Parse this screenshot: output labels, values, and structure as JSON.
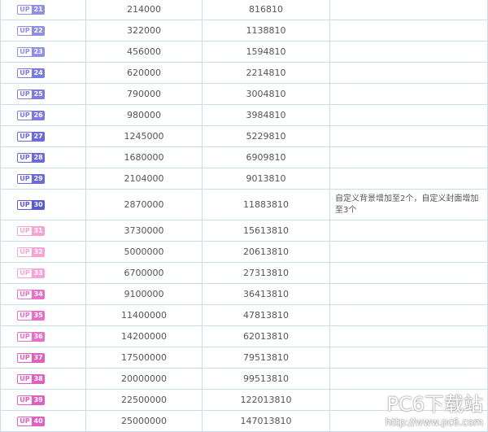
{
  "table": {
    "rows": [
      {
        "tag": "UP",
        "level": 21,
        "exp": 214000,
        "total": 816810,
        "color": "#8f8fe6"
      },
      {
        "tag": "UP",
        "level": 22,
        "exp": 322000,
        "total": 1138810,
        "color": "#8f8fe6"
      },
      {
        "tag": "UP",
        "level": 23,
        "exp": 456000,
        "total": 1594810,
        "color": "#8f8fe6"
      },
      {
        "tag": "UP",
        "level": 24,
        "exp": 620000,
        "total": 2214810,
        "color": "#7c7ce0"
      },
      {
        "tag": "UP",
        "level": 25,
        "exp": 790000,
        "total": 3004810,
        "color": "#7c7ce0"
      },
      {
        "tag": "UP",
        "level": 26,
        "exp": 980000,
        "total": 3984810,
        "color": "#7c7ce0"
      },
      {
        "tag": "UP",
        "level": 27,
        "exp": 1245000,
        "total": 5229810,
        "color": "#6a6ad8"
      },
      {
        "tag": "UP",
        "level": 28,
        "exp": 1680000,
        "total": 6909810,
        "color": "#6a6ad8"
      },
      {
        "tag": "UP",
        "level": 29,
        "exp": 2104000,
        "total": 9013810,
        "color": "#6a6ad8"
      },
      {
        "tag": "UP",
        "level": 30,
        "exp": 2870000,
        "total": 11883810,
        "color": "#5a5ad0",
        "note": "自定义背景增加至2个，自定义封面增加至3个"
      },
      {
        "tag": "UP",
        "level": 31,
        "exp": 3730000,
        "total": 15613810,
        "color": "#f3a6d6"
      },
      {
        "tag": "UP",
        "level": 32,
        "exp": 5000000,
        "total": 20613810,
        "color": "#f3a6d6"
      },
      {
        "tag": "UP",
        "level": 33,
        "exp": 6700000,
        "total": 27313810,
        "color": "#f3a6d6"
      },
      {
        "tag": "UP",
        "level": 34,
        "exp": 9100000,
        "total": 36413810,
        "color": "#e870c8"
      },
      {
        "tag": "UP",
        "level": 35,
        "exp": 11400000,
        "total": 47813810,
        "color": "#e870c8"
      },
      {
        "tag": "UP",
        "level": 36,
        "exp": 14200000,
        "total": 62013810,
        "color": "#e870c8"
      },
      {
        "tag": "UP",
        "level": 37,
        "exp": 17500000,
        "total": 79513810,
        "color": "#e060c0"
      },
      {
        "tag": "UP",
        "level": 38,
        "exp": 20000000,
        "total": 99513810,
        "color": "#e060c0"
      },
      {
        "tag": "UP",
        "level": 39,
        "exp": 22500000,
        "total": 122013810,
        "color": "#e060c0"
      },
      {
        "tag": "UP",
        "level": 40,
        "exp": 25000000,
        "total": 147013810,
        "color": "#e060c0"
      }
    ]
  },
  "watermark": {
    "brand": "PC6下载站",
    "url": "http://www.pc6.com"
  }
}
